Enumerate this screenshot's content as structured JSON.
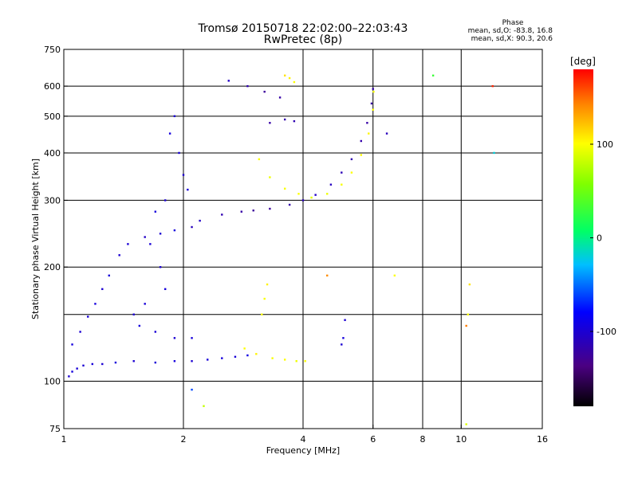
{
  "header": {
    "title": "Tromsø 20150718 22:02:00–22:03:43",
    "subtitle": "RwPretec (8p)",
    "phase_title": "Phase",
    "phase_o": "mean, sd,O: -83.8, 16.8",
    "phase_x": "mean, sd,X: 90.3, 20.6"
  },
  "colorbar": {
    "unit_label": "[deg]",
    "ticks": [
      {
        "value": 100,
        "label": "100"
      },
      {
        "value": 0,
        "label": "0"
      },
      {
        "value": -100,
        "label": "-100"
      }
    ],
    "range": [
      -180,
      180
    ]
  },
  "chart_data": {
    "type": "scatter",
    "title": "Tromsø 20150718 22:02:00–22:03:43",
    "subtitle": "RwPretec (8p)",
    "xlabel": "Frequency [MHz]",
    "ylabel": "Stationary phase Virtual Height [km]",
    "x_scale": "log",
    "y_scale": "log",
    "xlim": [
      1,
      16
    ],
    "ylim": [
      75,
      750
    ],
    "grid": true,
    "x_ticks": [
      {
        "value": 1,
        "label": "1"
      },
      {
        "value": 2,
        "label": "2"
      },
      {
        "value": 4,
        "label": "4"
      },
      {
        "value": 6,
        "label": "6"
      },
      {
        "value": 8,
        "label": "8"
      },
      {
        "value": 10,
        "label": "10"
      },
      {
        "value": 16,
        "label": "16"
      }
    ],
    "y_ticks": [
      {
        "value": 75,
        "label": "75"
      },
      {
        "value": 100,
        "label": "100"
      },
      {
        "value": 200,
        "label": "200"
      },
      {
        "value": 300,
        "label": "300"
      },
      {
        "value": 400,
        "label": "400"
      },
      {
        "value": 500,
        "label": "500"
      },
      {
        "value": 600,
        "label": "600"
      },
      {
        "value": 750,
        "label": "750"
      }
    ],
    "x_grid": [
      2,
      4,
      6,
      8,
      10
    ],
    "y_grid": [
      100,
      150,
      200,
      300,
      400,
      500,
      600
    ],
    "color_encoding": "phase [deg]",
    "points": [
      [
        1.03,
        103,
        -100
      ],
      [
        1.05,
        106,
        -95
      ],
      [
        1.08,
        108,
        -98
      ],
      [
        1.12,
        110,
        -100
      ],
      [
        1.18,
        111,
        -97
      ],
      [
        1.25,
        111,
        -100
      ],
      [
        1.35,
        112,
        -96
      ],
      [
        1.5,
        113,
        -100
      ],
      [
        1.7,
        112,
        -98
      ],
      [
        1.9,
        113,
        -95
      ],
      [
        2.1,
        113,
        -100
      ],
      [
        2.3,
        114,
        -97
      ],
      [
        2.5,
        115,
        -95
      ],
      [
        2.7,
        116,
        -98
      ],
      [
        2.9,
        117,
        -92
      ],
      [
        1.05,
        125,
        -95
      ],
      [
        1.1,
        135,
        -100
      ],
      [
        1.15,
        148,
        -98
      ],
      [
        1.2,
        160,
        -95
      ],
      [
        1.25,
        175,
        -100
      ],
      [
        1.3,
        190,
        -97
      ],
      [
        1.38,
        215,
        -100
      ],
      [
        1.45,
        230,
        -98
      ],
      [
        1.6,
        240,
        -105
      ],
      [
        1.75,
        245,
        -100
      ],
      [
        1.9,
        250,
        -95
      ],
      [
        2.1,
        255,
        -110
      ],
      [
        2.2,
        265,
        -105
      ],
      [
        2.5,
        275,
        -115
      ],
      [
        2.8,
        280,
        -120
      ],
      [
        3.0,
        282,
        -125
      ],
      [
        3.3,
        285,
        -125
      ],
      [
        3.7,
        292,
        -118
      ],
      [
        4.0,
        300,
        -110
      ],
      [
        4.3,
        310,
        -105
      ],
      [
        4.7,
        330,
        -108
      ],
      [
        5.0,
        355,
        -112
      ],
      [
        5.3,
        385,
        -115
      ],
      [
        5.6,
        430,
        -118
      ],
      [
        5.8,
        480,
        -120
      ],
      [
        5.95,
        540,
        -122
      ],
      [
        6.0,
        590,
        -120
      ],
      [
        3.1,
        385,
        100
      ],
      [
        3.3,
        345,
        95
      ],
      [
        3.6,
        322,
        98
      ],
      [
        3.9,
        312,
        100
      ],
      [
        4.2,
        305,
        92
      ],
      [
        4.6,
        312,
        95
      ],
      [
        5.0,
        330,
        98
      ],
      [
        5.3,
        355,
        100
      ],
      [
        5.6,
        395,
        102
      ],
      [
        5.85,
        450,
        104
      ],
      [
        6.0,
        520,
        100
      ],
      [
        6.02,
        580,
        98
      ],
      [
        2.85,
        122,
        100
      ],
      [
        3.05,
        118,
        105
      ],
      [
        3.35,
        115,
        98
      ],
      [
        3.6,
        114,
        100
      ],
      [
        3.85,
        113,
        95
      ],
      [
        4.05,
        113,
        100
      ],
      [
        3.6,
        640,
        110
      ],
      [
        3.7,
        630,
        105
      ],
      [
        3.8,
        615,
        100
      ],
      [
        2.6,
        620,
        -105
      ],
      [
        2.9,
        600,
        -115
      ],
      [
        3.2,
        580,
        -125
      ],
      [
        3.5,
        560,
        -120
      ],
      [
        3.3,
        480,
        -120
      ],
      [
        3.6,
        490,
        -118
      ],
      [
        3.8,
        485,
        -115
      ],
      [
        1.9,
        500,
        -100
      ],
      [
        1.85,
        450,
        -95
      ],
      [
        1.95,
        400,
        -98
      ],
      [
        2.0,
        350,
        -100
      ],
      [
        2.05,
        320,
        -97
      ],
      [
        1.8,
        300,
        -100
      ],
      [
        1.7,
        280,
        -95
      ],
      [
        1.65,
        230,
        -98
      ],
      [
        1.75,
        200,
        -100
      ],
      [
        1.8,
        175,
        -95
      ],
      [
        1.6,
        160,
        -97
      ],
      [
        1.5,
        150,
        -100
      ],
      [
        1.55,
        140,
        -95
      ],
      [
        1.7,
        135,
        -98
      ],
      [
        1.9,
        130,
        -100
      ],
      [
        2.1,
        130,
        -96
      ],
      [
        3.25,
        180,
        105
      ],
      [
        3.2,
        165,
        98
      ],
      [
        3.15,
        150,
        100
      ],
      [
        6.8,
        190,
        100
      ],
      [
        10.5,
        180,
        110
      ],
      [
        10.4,
        150,
        100
      ],
      [
        10.3,
        140,
        145
      ],
      [
        12.0,
        600,
        170
      ],
      [
        12.1,
        400,
        -20
      ],
      [
        8.5,
        640,
        30
      ],
      [
        5.1,
        145,
        -100
      ],
      [
        5.05,
        130,
        -95
      ],
      [
        5.0,
        125,
        -100
      ],
      [
        4.6,
        190,
        140
      ],
      [
        6.5,
        450,
        -110
      ],
      [
        10.3,
        77,
        90
      ],
      [
        2.25,
        86,
        80
      ],
      [
        2.1,
        95,
        -60
      ]
    ]
  }
}
